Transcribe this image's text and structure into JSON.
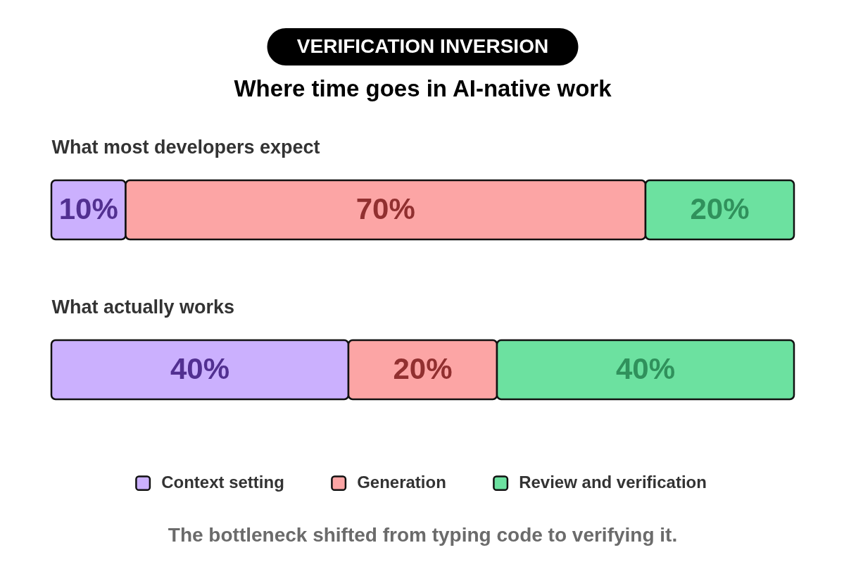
{
  "chart_data": {
    "type": "bar",
    "title": "VERIFICATION INVERSION",
    "subtitle": "Where time goes in AI-native work",
    "categories": [
      "What most developers expect",
      "What actually works"
    ],
    "series": [
      {
        "name": "Context setting",
        "color": "#cbb0fe",
        "values": [
          10,
          40
        ],
        "value_labels": [
          "10%",
          "40%"
        ]
      },
      {
        "name": "Generation",
        "color": "#fca5a5",
        "values": [
          70,
          20
        ],
        "value_labels": [
          "70%",
          "20%"
        ]
      },
      {
        "name": "Review and verification",
        "color": "#6ce1a0",
        "values": [
          20,
          40
        ],
        "value_labels": [
          "20%",
          "40%"
        ]
      }
    ],
    "stacked": true,
    "orientation": "horizontal",
    "legend": "bottom",
    "tick_labels": "y",
    "annotations": [
      "The bottleneck shifted from typing code to verifying it."
    ]
  }
}
